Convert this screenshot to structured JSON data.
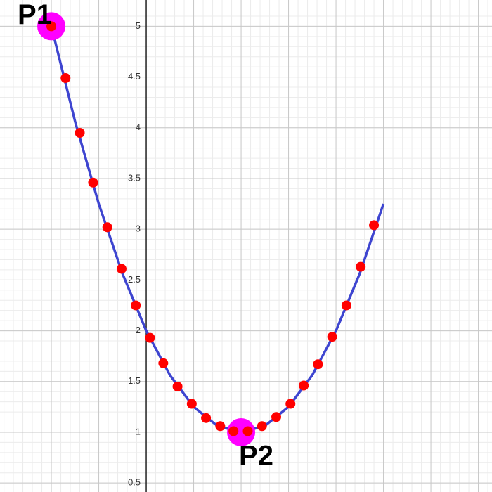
{
  "chart_data": {
    "type": "scatter",
    "xlim": [
      -1.541,
      3.644
    ],
    "ylim": [
      0.411,
      5.259
    ],
    "yticks": [
      0.5,
      1,
      1.5,
      2,
      2.5,
      3,
      3.5,
      4,
      4.5,
      5
    ],
    "xgrid": [
      -1.5,
      -1,
      -0.5,
      0,
      0.5,
      1,
      1.5,
      2,
      2.5,
      3,
      3.5
    ],
    "minor_step": 0.1,
    "grid": true,
    "curve": {
      "color": "#3e45d0",
      "x": [
        -1,
        -0.75,
        -0.5,
        -0.25,
        0,
        0.25,
        0.5,
        0.75,
        1,
        1.25,
        1.5,
        1.75,
        2,
        2.25,
        2.5
      ],
      "y": [
        5,
        4.0625,
        3.25,
        2.5625,
        2,
        1.5625,
        1.25,
        1.0625,
        1,
        1.0625,
        1.25,
        1.5625,
        2,
        2.5625,
        3.25
      ]
    },
    "points": {
      "color": "#ff0000",
      "x": [
        -1,
        -0.85,
        -0.7,
        -0.56,
        -0.41,
        -0.26,
        -0.11,
        0.04,
        0.18,
        0.33,
        0.48,
        0.63,
        0.78,
        0.92,
        1.07,
        1.22,
        1.37,
        1.52,
        1.66,
        1.81,
        1.96,
        2.11,
        2.26,
        2.4
      ],
      "y": [
        5,
        4.49,
        3.95,
        3.46,
        3.02,
        2.61,
        2.25,
        1.93,
        1.68,
        1.45,
        1.28,
        1.14,
        1.06,
        1.01,
        1.01,
        1.06,
        1.15,
        1.28,
        1.46,
        1.67,
        1.94,
        2.25,
        2.63,
        3.04
      ]
    },
    "markers": [
      {
        "label": "P1",
        "x": -1,
        "y": 5,
        "color": "#ff00ff"
      },
      {
        "label": "P2",
        "x": 1,
        "y": 1,
        "color": "#ff00ff"
      }
    ]
  }
}
